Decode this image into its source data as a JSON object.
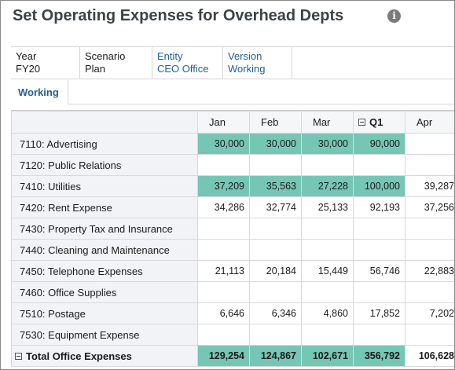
{
  "title": "Set Operating Expenses for Overhead Depts",
  "info_icon": "info-icon",
  "pov": [
    {
      "label": "Year",
      "value": "FY20",
      "link": false
    },
    {
      "label": "Scenario",
      "value": "Plan",
      "link": false
    },
    {
      "label": "Entity",
      "value": "CEO Office",
      "link": true
    },
    {
      "label": "Version",
      "value": "Working",
      "link": true
    }
  ],
  "tabs": [
    {
      "label": "Working"
    }
  ],
  "columns": [
    "Jan",
    "Feb",
    "Mar",
    "Q1",
    "Apr"
  ],
  "rows": [
    {
      "label": "7110: Advertising",
      "values": [
        "30,000",
        "30,000",
        "30,000",
        "90,000",
        ""
      ],
      "highlight": true
    },
    {
      "label": "7120: Public Relations",
      "values": [
        "",
        "",
        "",
        "",
        ""
      ],
      "highlight": false
    },
    {
      "label": "7410: Utilities",
      "values": [
        "37,209",
        "35,563",
        "27,228",
        "100,000",
        "39,287"
      ],
      "highlight": true
    },
    {
      "label": "7420: Rent Expense",
      "values": [
        "34,286",
        "32,774",
        "25,133",
        "92,193",
        "37,256"
      ],
      "highlight": false
    },
    {
      "label": "7430: Property Tax and Insurance",
      "values": [
        "",
        "",
        "",
        "",
        ""
      ],
      "highlight": false
    },
    {
      "label": "7440: Cleaning and Maintenance",
      "values": [
        "",
        "",
        "",
        "",
        ""
      ],
      "highlight": false
    },
    {
      "label": "7450: Telephone Expenses",
      "values": [
        "21,113",
        "20,184",
        "15,449",
        "56,746",
        "22,883"
      ],
      "highlight": false
    },
    {
      "label": "7460: Office Supplies",
      "values": [
        "",
        "",
        "",
        "",
        ""
      ],
      "highlight": false
    },
    {
      "label": "7510: Postage",
      "values": [
        "6,646",
        "6,346",
        "4,860",
        "17,852",
        "7,202"
      ],
      "highlight": false
    },
    {
      "label": "7530: Equipment Expense",
      "values": [
        "",
        "",
        "",
        "",
        ""
      ],
      "highlight": false
    }
  ],
  "total": {
    "label": "Total Office Expenses",
    "values": [
      "129,254",
      "124,867",
      "102,671",
      "356,792",
      "106,628"
    ]
  },
  "colors": {
    "highlight": "#76c6b5",
    "link": "#1f5f9c",
    "title": "#3d4247"
  }
}
